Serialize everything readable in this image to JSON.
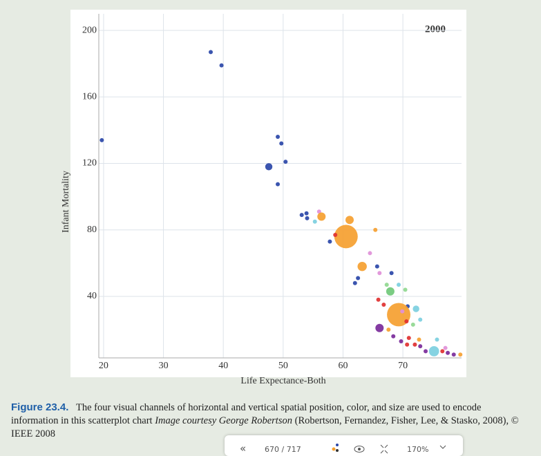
{
  "chart_data": {
    "type": "scatter",
    "annotation": "2000",
    "xlabel": "Life Expectance-Both",
    "ylabel": "Infant Mortality",
    "xlim": [
      19.2,
      79.8
    ],
    "xticks": [
      20,
      30,
      40,
      50,
      60,
      70
    ],
    "ylim": [
      3,
      210
    ],
    "yticks": [
      40,
      80,
      120,
      160,
      200
    ],
    "grid": true,
    "x": [
      19.7,
      37.9,
      39.7,
      49.1,
      49.7,
      50.4,
      47.6,
      49.1,
      53.1,
      53.9,
      54.0,
      55.3,
      56.0,
      56.4,
      61.1,
      65.4,
      60.5,
      58.7,
      57.8,
      64.5,
      63.2,
      65.7,
      66.1,
      68.1,
      62.5,
      62.0,
      67.3,
      69.3,
      70.4,
      67.9,
      65.9,
      66.8,
      70.8,
      72.2,
      69.3,
      69.9,
      72.9,
      70.6,
      71.7,
      66.1,
      67.6,
      68.4,
      71.0,
      72.7,
      69.7,
      70.7,
      72.0,
      72.9,
      73.8,
      75.7,
      75.2,
      76.6,
      77.5,
      78.5,
      79.6,
      77.1
    ],
    "values": [
      134,
      187,
      179,
      136,
      132,
      121,
      118,
      107.5,
      89,
      90,
      87,
      85,
      91,
      88,
      86,
      80,
      76,
      77,
      73,
      66,
      58,
      58,
      54,
      54,
      51,
      48,
      47,
      47,
      44,
      43,
      38,
      35,
      34,
      32.5,
      29,
      31,
      26,
      25,
      23,
      21,
      20,
      16,
      15,
      14,
      13,
      11,
      11,
      10,
      7,
      14,
      7,
      7,
      6,
      5,
      5,
      9
    ],
    "sizes": [
      1,
      1,
      1,
      1,
      1,
      1,
      3,
      1,
      1,
      1,
      1,
      1,
      1,
      4,
      4,
      1,
      32,
      1,
      1,
      1,
      5,
      1,
      1,
      1,
      1,
      1,
      1,
      1,
      1,
      4,
      1,
      1,
      1,
      2.5,
      32,
      1,
      1,
      1,
      1,
      4,
      1,
      1,
      1,
      1,
      1,
      1,
      1,
      1,
      1,
      1,
      6,
      1,
      1,
      1,
      1,
      1
    ],
    "colors": [
      "#2a47a8",
      "#2a47a8",
      "#2a47a8",
      "#2a47a8",
      "#2a47a8",
      "#2a47a8",
      "#2a47a8",
      "#2a47a8",
      "#2a47a8",
      "#2a47a8",
      "#2a47a8",
      "#7ccfe0",
      "#e090d8",
      "#f5a030",
      "#f5a030",
      "#f5a030",
      "#f5a030",
      "#e03030",
      "#2a47a8",
      "#e090d8",
      "#f5a030",
      "#2a47a8",
      "#e090d8",
      "#2a47a8",
      "#2a47a8",
      "#2a47a8",
      "#90d890",
      "#7ccfe0",
      "#90d890",
      "#70c878",
      "#e03030",
      "#e03030",
      "#2a47a8",
      "#7ccfe0",
      "#f5a030",
      "#e090d8",
      "#7ccfe0",
      "#e03030",
      "#90d890",
      "#7a2a9a",
      "#f5a030",
      "#7a2a9a",
      "#e03030",
      "#f5a030",
      "#7a2a9a",
      "#e03030",
      "#e03030",
      "#7a2a9a",
      "#7a2a9a",
      "#7ccfe0",
      "#7ccfe0",
      "#e03030",
      "#7a2a9a",
      "#7a2a9a",
      "#f5a030",
      "#e090d8"
    ]
  },
  "caption": {
    "label": "Figure 23.4.",
    "text1": "The four visual channels of horizontal and vertical spatial position, color, and size are used to encode information in this scatterplot chart ",
    "italic": "Image courtesy George Robertson",
    "text2": " (Robertson, Fernandez, Fisher, Lee, & Stasko, 2008), © IEEE 2008"
  },
  "toolbar": {
    "back": "«",
    "page": "670 / 717",
    "zoom": "170%"
  }
}
